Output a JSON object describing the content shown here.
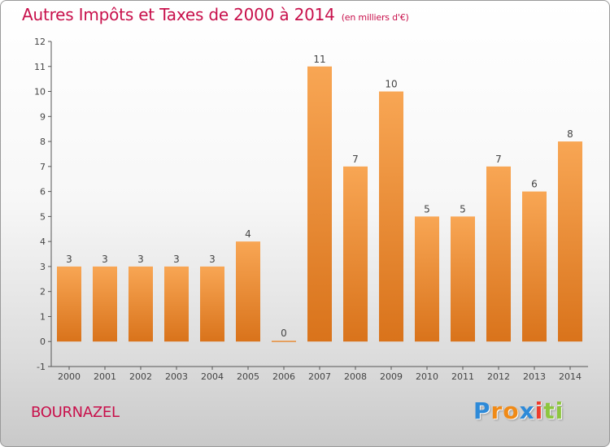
{
  "header": {
    "title": "Autres Impôts et Taxes de 2000 à 2014",
    "subtitle": "(en milliers d'€)"
  },
  "footer": {
    "commune": "BOURNAZEL",
    "logo_letters": [
      "P",
      "r",
      "o",
      "x",
      "i",
      "t",
      "i"
    ]
  },
  "colors": {
    "title": "#c8104b",
    "bar_top": "#f8a654",
    "bar_bottom": "#d9731b",
    "axis": "#555555",
    "grid": "#dddddd",
    "logo": [
      "#2e8ad8",
      "#f08a16",
      "#f08a16",
      "#2e8ad8",
      "#ef3b2c",
      "#8dc63f",
      "#8dc63f"
    ]
  },
  "chart_data": {
    "type": "bar",
    "title": "Autres Impôts et Taxes de 2000 à 2014",
    "subtitle": "(en milliers d'€)",
    "xlabel": "",
    "ylabel": "",
    "categories": [
      "2000",
      "2001",
      "2002",
      "2003",
      "2004",
      "2005",
      "2006",
      "2007",
      "2008",
      "2009",
      "2010",
      "2011",
      "2012",
      "2013",
      "2014"
    ],
    "values": [
      3,
      3,
      3,
      3,
      3,
      4,
      0,
      11,
      7,
      10,
      5,
      5,
      7,
      6,
      8
    ],
    "data_labels": [
      "3",
      "3",
      "3",
      "3",
      "3",
      "4",
      "0",
      "11",
      "7",
      "10",
      "5",
      "5",
      "7",
      "6",
      "8"
    ],
    "y_ticks": [
      "-1",
      "0",
      "1",
      "2",
      "3",
      "4",
      "5",
      "6",
      "7",
      "8",
      "9",
      "10",
      "11",
      "12"
    ],
    "ylim": [
      -1,
      12
    ],
    "grid": false,
    "legend": "none"
  }
}
